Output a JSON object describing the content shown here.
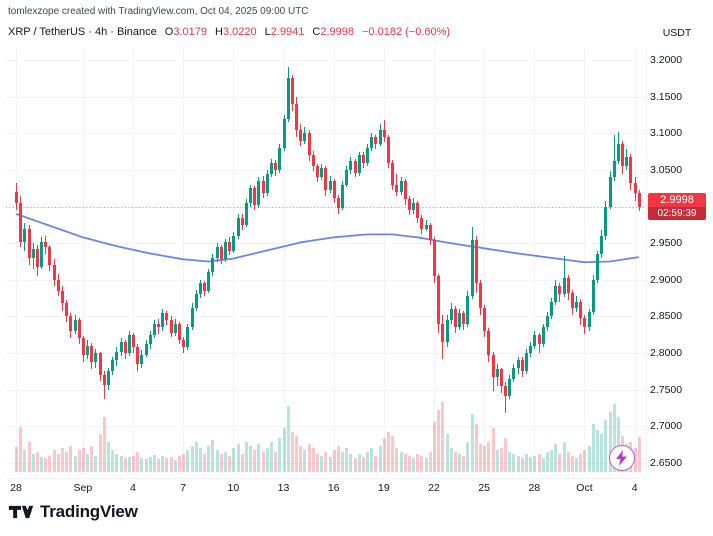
{
  "header": {
    "attribution": "tomlexzope created with TradingView.com, Oct 04, 2025 09:00 UTC"
  },
  "legend": {
    "symbol": "XRP / TetherUS · 4h · Binance",
    "o_label": "O",
    "o": "3.0179",
    "h_label": "H",
    "h": "3.0220",
    "l_label": "L",
    "l": "2.9941",
    "c_label": "C",
    "c": "2.9998",
    "change": "−0.0182 (−0.60%)"
  },
  "axis": {
    "currency": "USDT"
  },
  "price_badge": {
    "price": "2.9998",
    "countdown": "02:59:39",
    "value": 2.9998
  },
  "footer": {
    "brand": "TradingView"
  },
  "colors": {
    "up": "#089981",
    "down": "#F23645",
    "vol_up": "rgba(8,153,129,0.28)",
    "vol_down": "rgba(242,54,69,0.28)",
    "ma": "#6c84e6",
    "grid": "#f0f3fa",
    "badge_bg": "#F23645",
    "last_price_line": "rgba(242,54,69,0.55)",
    "bolt": "#b23cc6"
  },
  "chart_data": {
    "type": "candlestick",
    "title": "XRP / TetherUS · 4h · Binance",
    "ylabel": "USDT",
    "ylim": [
      2.65,
      3.2
    ],
    "grid": true,
    "ohlc_display": {
      "open": 3.0179,
      "high": 3.022,
      "low": 2.9941,
      "close": 2.9998,
      "change": -0.0182,
      "change_pct": -0.6
    },
    "last_price": 2.9998,
    "y_ticks": [
      3.2,
      3.15,
      3.1,
      3.05,
      3.0,
      2.95,
      2.9,
      2.85,
      2.8,
      2.75,
      2.7,
      2.65
    ],
    "y_tick_labels": [
      "3.2000",
      "3.1500",
      "3.1000",
      "3.0500",
      "3.0000",
      "2.9500",
      "2.9000",
      "2.8500",
      "2.8000",
      "2.7500",
      "2.7000",
      "2.6500"
    ],
    "x_ticks": [
      {
        "label": "28",
        "i": 0
      },
      {
        "label": "Sep",
        "i": 16
      },
      {
        "label": "4",
        "i": 28
      },
      {
        "label": "7",
        "i": 40
      },
      {
        "label": "10",
        "i": 52
      },
      {
        "label": "13",
        "i": 64
      },
      {
        "label": "16",
        "i": 76
      },
      {
        "label": "19",
        "i": 88
      },
      {
        "label": "22",
        "i": 100
      },
      {
        "label": "25",
        "i": 112
      },
      {
        "label": "28",
        "i": 124
      },
      {
        "label": "Oct",
        "i": 136
      },
      {
        "label": "4",
        "i": 148
      }
    ],
    "candles": [
      [
        3.02,
        3.032,
        2.995,
        3.005
      ],
      [
        3.005,
        3.015,
        2.945,
        2.952
      ],
      [
        2.952,
        2.978,
        2.94,
        2.97
      ],
      [
        2.97,
        2.975,
        2.92,
        2.93
      ],
      [
        2.93,
        2.95,
        2.915,
        2.942
      ],
      [
        2.942,
        2.948,
        2.905,
        2.918
      ],
      [
        2.918,
        2.958,
        2.915,
        2.952
      ],
      [
        2.952,
        2.96,
        2.935,
        2.945
      ],
      [
        2.945,
        2.948,
        2.912,
        2.92
      ],
      [
        2.92,
        2.928,
        2.892,
        2.9
      ],
      [
        2.9,
        2.908,
        2.878,
        2.885
      ],
      [
        2.885,
        2.892,
        2.858,
        2.868
      ],
      [
        2.868,
        2.872,
        2.842,
        2.85
      ],
      [
        2.85,
        2.855,
        2.82,
        2.83
      ],
      [
        2.83,
        2.852,
        2.826,
        2.845
      ],
      [
        2.845,
        2.848,
        2.812,
        2.82
      ],
      [
        2.82,
        2.824,
        2.788,
        2.798
      ],
      [
        2.798,
        2.818,
        2.792,
        2.81
      ],
      [
        2.81,
        2.814,
        2.778,
        2.788
      ],
      [
        2.788,
        2.805,
        2.78,
        2.8
      ],
      [
        2.8,
        2.802,
        2.762,
        2.77
      ],
      [
        2.77,
        2.775,
        2.738,
        2.757
      ],
      [
        2.757,
        2.78,
        2.75,
        2.775
      ],
      [
        2.775,
        2.795,
        2.77,
        2.79
      ],
      [
        2.79,
        2.808,
        2.782,
        2.802
      ],
      [
        2.802,
        2.82,
        2.796,
        2.815
      ],
      [
        2.815,
        2.818,
        2.792,
        2.8
      ],
      [
        2.8,
        2.83,
        2.796,
        2.825
      ],
      [
        2.825,
        2.828,
        2.8,
        2.808
      ],
      [
        2.808,
        2.812,
        2.776,
        2.785
      ],
      [
        2.785,
        2.804,
        2.78,
        2.798
      ],
      [
        2.798,
        2.818,
        2.794,
        2.812
      ],
      [
        2.812,
        2.83,
        2.806,
        2.825
      ],
      [
        2.825,
        2.845,
        2.82,
        2.84
      ],
      [
        2.84,
        2.846,
        2.826,
        2.835
      ],
      [
        2.835,
        2.86,
        2.83,
        2.855
      ],
      [
        2.855,
        2.858,
        2.838,
        2.845
      ],
      [
        2.845,
        2.85,
        2.822,
        2.828
      ],
      [
        2.828,
        2.846,
        2.824,
        2.84
      ],
      [
        2.84,
        2.843,
        2.812,
        2.818
      ],
      [
        2.818,
        2.822,
        2.8,
        2.808
      ],
      [
        2.808,
        2.84,
        2.804,
        2.835
      ],
      [
        2.835,
        2.868,
        2.832,
        2.862
      ],
      [
        2.862,
        2.886,
        2.858,
        2.88
      ],
      [
        2.88,
        2.9,
        2.875,
        2.895
      ],
      [
        2.895,
        2.898,
        2.878,
        2.885
      ],
      [
        2.885,
        2.915,
        2.882,
        2.91
      ],
      [
        2.91,
        2.935,
        2.905,
        2.93
      ],
      [
        2.93,
        2.95,
        2.925,
        2.945
      ],
      [
        2.945,
        2.948,
        2.922,
        2.928
      ],
      [
        2.928,
        2.956,
        2.924,
        2.952
      ],
      [
        2.952,
        2.958,
        2.934,
        2.94
      ],
      [
        2.94,
        2.965,
        2.936,
        2.96
      ],
      [
        2.96,
        2.99,
        2.956,
        2.985
      ],
      [
        2.985,
        2.99,
        2.968,
        2.975
      ],
      [
        2.975,
        3.01,
        2.972,
        3.005
      ],
      [
        3.005,
        3.03,
        3.0,
        3.025
      ],
      [
        3.025,
        3.028,
        2.995,
        3.002
      ],
      [
        3.002,
        3.04,
        2.998,
        3.035
      ],
      [
        3.035,
        3.042,
        3.012,
        3.018
      ],
      [
        3.018,
        3.05,
        3.014,
        3.045
      ],
      [
        3.045,
        3.065,
        3.04,
        3.06
      ],
      [
        3.06,
        3.064,
        3.042,
        3.05
      ],
      [
        3.05,
        3.085,
        3.046,
        3.08
      ],
      [
        3.08,
        3.125,
        3.076,
        3.12
      ],
      [
        3.12,
        3.19,
        3.115,
        3.175
      ],
      [
        3.175,
        3.18,
        3.13,
        3.14
      ],
      [
        3.14,
        3.15,
        3.095,
        3.105
      ],
      [
        3.105,
        3.112,
        3.082,
        3.09
      ],
      [
        3.09,
        3.108,
        3.085,
        3.1
      ],
      [
        3.1,
        3.104,
        3.062,
        3.07
      ],
      [
        3.07,
        3.076,
        3.048,
        3.055
      ],
      [
        3.055,
        3.058,
        3.034,
        3.04
      ],
      [
        3.04,
        3.058,
        3.036,
        3.052
      ],
      [
        3.052,
        3.055,
        3.015,
        3.022
      ],
      [
        3.022,
        3.042,
        3.018,
        3.035
      ],
      [
        3.035,
        3.038,
        3.005,
        3.012
      ],
      [
        3.012,
        3.016,
        2.99,
        2.998
      ],
      [
        2.998,
        3.035,
        2.995,
        3.03
      ],
      [
        3.03,
        3.055,
        3.026,
        3.05
      ],
      [
        3.05,
        3.068,
        3.045,
        3.062
      ],
      [
        3.062,
        3.065,
        3.04,
        3.046
      ],
      [
        3.046,
        3.075,
        3.042,
        3.07
      ],
      [
        3.07,
        3.074,
        3.052,
        3.06
      ],
      [
        3.06,
        3.085,
        3.056,
        3.08
      ],
      [
        3.08,
        3.1,
        3.076,
        3.095
      ],
      [
        3.095,
        3.098,
        3.078,
        3.085
      ],
      [
        3.085,
        3.112,
        3.082,
        3.105
      ],
      [
        3.105,
        3.118,
        3.088,
        3.095
      ],
      [
        3.095,
        3.098,
        3.052,
        3.06
      ],
      [
        3.06,
        3.064,
        3.022,
        3.03
      ],
      [
        3.03,
        3.045,
        3.015,
        3.02
      ],
      [
        3.02,
        3.04,
        3.016,
        3.035
      ],
      [
        3.035,
        3.038,
        3.002,
        3.01
      ],
      [
        3.01,
        3.014,
        2.988,
        2.995
      ],
      [
        2.995,
        3.012,
        2.99,
        3.005
      ],
      [
        3.005,
        3.008,
        2.978,
        2.985
      ],
      [
        2.985,
        2.988,
        2.962,
        2.97
      ],
      [
        2.97,
        2.982,
        2.966,
        2.975
      ],
      [
        2.975,
        2.978,
        2.948,
        2.955
      ],
      [
        2.955,
        2.958,
        2.895,
        2.905
      ],
      [
        2.905,
        2.908,
        2.828,
        2.84
      ],
      [
        2.84,
        2.852,
        2.792,
        2.815
      ],
      [
        2.815,
        2.852,
        2.808,
        2.845
      ],
      [
        2.845,
        2.868,
        2.84,
        2.86
      ],
      [
        2.86,
        2.864,
        2.828,
        2.836
      ],
      [
        2.836,
        2.86,
        2.832,
        2.855
      ],
      [
        2.855,
        2.858,
        2.832,
        2.84
      ],
      [
        2.84,
        2.885,
        2.836,
        2.878
      ],
      [
        2.878,
        2.972,
        2.874,
        2.955
      ],
      [
        2.955,
        2.96,
        2.882,
        2.895
      ],
      [
        2.895,
        2.9,
        2.852,
        2.862
      ],
      [
        2.862,
        2.866,
        2.822,
        2.83
      ],
      [
        2.83,
        2.834,
        2.788,
        2.798
      ],
      [
        2.798,
        2.802,
        2.748,
        2.768
      ],
      [
        2.768,
        2.785,
        2.755,
        2.778
      ],
      [
        2.778,
        2.78,
        2.745,
        2.755
      ],
      [
        2.755,
        2.76,
        2.718,
        2.742
      ],
      [
        2.742,
        2.77,
        2.738,
        2.765
      ],
      [
        2.765,
        2.785,
        2.76,
        2.78
      ],
      [
        2.78,
        2.795,
        2.772,
        2.79
      ],
      [
        2.79,
        2.794,
        2.768,
        2.776
      ],
      [
        2.776,
        2.805,
        2.772,
        2.8
      ],
      [
        2.8,
        2.815,
        2.795,
        2.81
      ],
      [
        2.81,
        2.83,
        2.805,
        2.825
      ],
      [
        2.825,
        2.828,
        2.8,
        2.812
      ],
      [
        2.812,
        2.84,
        2.808,
        2.835
      ],
      [
        2.835,
        2.856,
        2.83,
        2.85
      ],
      [
        2.85,
        2.875,
        2.846,
        2.87
      ],
      [
        2.87,
        2.9,
        2.865,
        2.892
      ],
      [
        2.892,
        2.896,
        2.87,
        2.88
      ],
      [
        2.88,
        2.932,
        2.876,
        2.902
      ],
      [
        2.902,
        2.906,
        2.872,
        2.882
      ],
      [
        2.882,
        2.886,
        2.852,
        2.862
      ],
      [
        2.862,
        2.878,
        2.856,
        2.87
      ],
      [
        2.87,
        2.874,
        2.838,
        2.848
      ],
      [
        2.848,
        2.852,
        2.826,
        2.836
      ],
      [
        2.836,
        2.86,
        2.83,
        2.856
      ],
      [
        2.856,
        2.906,
        2.852,
        2.9
      ],
      [
        2.9,
        2.94,
        2.895,
        2.935
      ],
      [
        2.935,
        2.968,
        2.93,
        2.96
      ],
      [
        2.96,
        3.008,
        2.955,
        3.0
      ],
      [
        3.0,
        3.048,
        2.996,
        3.04
      ],
      [
        3.04,
        3.098,
        3.035,
        3.062
      ],
      [
        3.062,
        3.102,
        3.058,
        3.085
      ],
      [
        3.085,
        3.09,
        3.045,
        3.055
      ],
      [
        3.055,
        3.078,
        3.05,
        3.068
      ],
      [
        3.068,
        3.072,
        3.022,
        3.032
      ],
      [
        3.032,
        3.04,
        3.008,
        3.018
      ],
      [
        3.0179,
        3.022,
        2.9941,
        2.9998
      ]
    ],
    "volumes": [
      25,
      45,
      22,
      30,
      18,
      20,
      15,
      14,
      16,
      22,
      18,
      24,
      20,
      26,
      16,
      22,
      24,
      18,
      26,
      16,
      38,
      55,
      30,
      22,
      18,
      16,
      14,
      15,
      16,
      20,
      14,
      13,
      15,
      17,
      13,
      16,
      14,
      15,
      12,
      16,
      18,
      22,
      26,
      30,
      24,
      18,
      26,
      32,
      22,
      18,
      20,
      16,
      24,
      28,
      18,
      30,
      26,
      22,
      28,
      20,
      24,
      30,
      20,
      34,
      44,
      66,
      40,
      36,
      26,
      22,
      28,
      24,
      18,
      16,
      20,
      15,
      22,
      26,
      20,
      24,
      18,
      14,
      18,
      15,
      20,
      24,
      16,
      26,
      34,
      40,
      36,
      24,
      20,
      18,
      16,
      14,
      18,
      16,
      14,
      20,
      50,
      62,
      70,
      38,
      24,
      20,
      18,
      16,
      30,
      58,
      48,
      28,
      26,
      30,
      44,
      22,
      24,
      34,
      20,
      18,
      16,
      14,
      18,
      15,
      16,
      18,
      14,
      20,
      22,
      28,
      18,
      30,
      20,
      16,
      14,
      18,
      22,
      26,
      48,
      42,
      38,
      52,
      60,
      68,
      55,
      36,
      28,
      30,
      24,
      35
    ],
    "ma_overlay": {
      "note": "blue moving-average line, values read off chart",
      "anchors": [
        [
          0,
          2.99
        ],
        [
          8,
          2.974
        ],
        [
          16,
          2.958
        ],
        [
          24,
          2.946
        ],
        [
          32,
          2.936
        ],
        [
          40,
          2.928
        ],
        [
          46,
          2.925
        ],
        [
          52,
          2.929
        ],
        [
          60,
          2.94
        ],
        [
          68,
          2.951
        ],
        [
          76,
          2.958
        ],
        [
          84,
          2.962
        ],
        [
          90,
          2.962
        ],
        [
          96,
          2.958
        ],
        [
          104,
          2.95
        ],
        [
          112,
          2.943
        ],
        [
          120,
          2.936
        ],
        [
          128,
          2.93
        ],
        [
          136,
          2.924
        ],
        [
          142,
          2.925
        ],
        [
          149,
          2.931
        ]
      ]
    }
  }
}
